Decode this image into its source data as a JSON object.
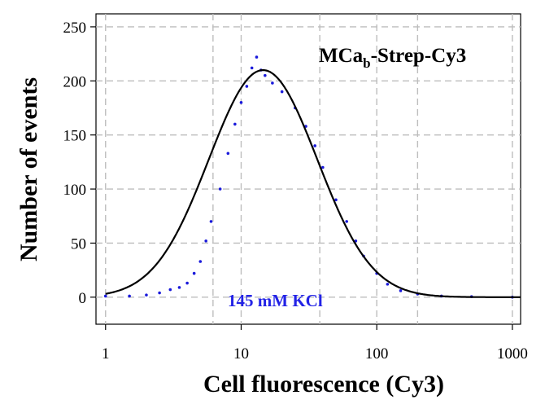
{
  "chart_data": {
    "type": "scatter",
    "title": "",
    "xlabel": "Cell fluorescence (Cy3)",
    "ylabel": "Number of events",
    "x_scale": "log",
    "xlim": [
      0.85,
      1150
    ],
    "ylim": [
      -25,
      262
    ],
    "x_ticks": [
      1,
      10,
      100,
      1000
    ],
    "x_tick_labels": [
      "1",
      "10",
      "100",
      "1000"
    ],
    "y_ticks": [
      0,
      50,
      100,
      150,
      200,
      250
    ],
    "y_tick_labels": [
      "0",
      "50",
      "100",
      "150",
      "200",
      "250"
    ],
    "x_gridlines": [
      1,
      6.2,
      10,
      38,
      100,
      200,
      1000
    ],
    "y_gridlines": [
      0,
      50,
      100,
      150,
      200,
      250
    ],
    "grid": true,
    "annotations": {
      "title_main": "MCa",
      "title_sub": "b",
      "title_rest": "-Strep-Cy3",
      "condition": "145 mM KCl"
    },
    "colors": {
      "points": "#1a1adb",
      "fit": "#000000",
      "condition_text": "#2323e6",
      "grid": "#bdbdbd"
    },
    "series": [
      {
        "type": "scatter",
        "points": [
          [
            1.0,
            1
          ],
          [
            1.5,
            1
          ],
          [
            2.0,
            2
          ],
          [
            2.5,
            4
          ],
          [
            3.0,
            7
          ],
          [
            3.5,
            9
          ],
          [
            4.0,
            13
          ],
          [
            4.5,
            22
          ],
          [
            5.0,
            33
          ],
          [
            5.5,
            52
          ],
          [
            6.0,
            70
          ],
          [
            7.0,
            100
          ],
          [
            8.0,
            133
          ],
          [
            9.0,
            160
          ],
          [
            10.0,
            180
          ],
          [
            11.0,
            195
          ],
          [
            12.0,
            212
          ],
          [
            13.0,
            222
          ],
          [
            14.0,
            210
          ],
          [
            15.0,
            205
          ],
          [
            17.0,
            198
          ],
          [
            20.0,
            190
          ],
          [
            25.0,
            175
          ],
          [
            30.0,
            158
          ],
          [
            35.0,
            140
          ],
          [
            40.0,
            120
          ],
          [
            50.0,
            90
          ],
          [
            60.0,
            70
          ],
          [
            70.0,
            52
          ],
          [
            80.0,
            38
          ],
          [
            100.0,
            22
          ],
          [
            120.0,
            12
          ],
          [
            150.0,
            6
          ],
          [
            200.0,
            3
          ],
          [
            300.0,
            1
          ],
          [
            500.0,
            0.5
          ],
          [
            1000.0,
            0
          ]
        ]
      },
      {
        "type": "line",
        "name": "",
        "model": "lognormal",
        "peak_x": 14.5,
        "peak_y": 210,
        "log_sigma": 0.4
      }
    ]
  }
}
